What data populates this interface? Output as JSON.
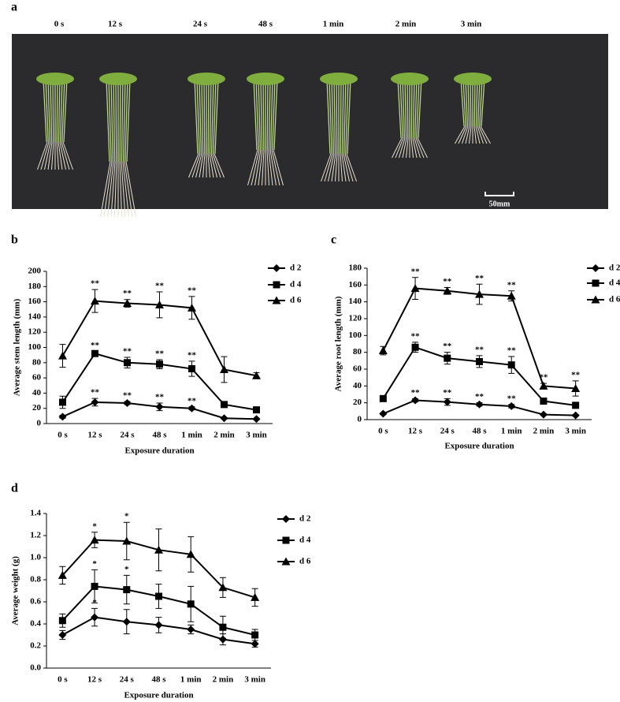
{
  "photo": {
    "label": "a",
    "durations": [
      "0 s",
      "12 s",
      "24 s",
      "48 s",
      "1 min",
      "2 min",
      "3 min"
    ],
    "scale_bar": "50mm"
  },
  "chart_data": [
    {
      "type": "line",
      "panel": "b",
      "y_label": "Average stem length (mm)",
      "x_label": "Exposure duration",
      "categories": [
        "0 s",
        "12 s",
        "24 s",
        "48 s",
        "1 min",
        "2 min",
        "3 min"
      ],
      "ylim": [
        0,
        200
      ],
      "yticks": [
        0,
        20,
        40,
        60,
        80,
        100,
        120,
        140,
        160,
        180,
        200
      ],
      "series": [
        {
          "name": "d 2",
          "color": "#000000",
          "marker": "diamond",
          "values": [
            9,
            28,
            27,
            22,
            20,
            7,
            6
          ],
          "errors": [
            2,
            5,
            2,
            5,
            2,
            1,
            1
          ],
          "significance": [
            null,
            "**",
            "**",
            "**",
            "**",
            null,
            null
          ]
        },
        {
          "name": "d 4",
          "color": "#000000",
          "marker": "square",
          "values": [
            28,
            92,
            80,
            78,
            72,
            25,
            18
          ],
          "errors": [
            8,
            3,
            7,
            6,
            10,
            2,
            2
          ],
          "significance": [
            null,
            "**",
            "**",
            "**",
            "**",
            null,
            null
          ]
        },
        {
          "name": "d 6",
          "color": "#000000",
          "marker": "triangle",
          "values": [
            89,
            161,
            158,
            156,
            152,
            71,
            63
          ],
          "errors": [
            15,
            15,
            5,
            17,
            15,
            17,
            4
          ],
          "significance": [
            null,
            "**",
            "**",
            "**",
            "**",
            null,
            null
          ]
        }
      ]
    },
    {
      "type": "line",
      "panel": "c",
      "y_label": "Average root length (mm)",
      "x_label": "Exposure duration",
      "categories": [
        "0 s",
        "12 s",
        "24 s",
        "48 s",
        "1 min",
        "2 min",
        "3 min"
      ],
      "ylim": [
        0,
        180
      ],
      "yticks": [
        0,
        20,
        40,
        60,
        80,
        100,
        120,
        140,
        160,
        180
      ],
      "series": [
        {
          "name": "d 2",
          "color": "#000000",
          "marker": "diamond",
          "values": [
            7,
            23,
            21,
            18,
            16,
            6,
            5
          ],
          "errors": [
            1,
            2,
            4,
            2,
            2,
            1,
            1
          ],
          "significance": [
            null,
            "**",
            "**",
            "**",
            "**",
            null,
            null
          ]
        },
        {
          "name": "d 4",
          "color": "#000000",
          "marker": "square",
          "values": [
            25,
            86,
            73,
            69,
            65,
            22,
            17
          ],
          "errors": [
            3,
            6,
            7,
            7,
            10,
            3,
            2
          ],
          "significance": [
            null,
            "**",
            "**",
            "**",
            "**",
            null,
            null
          ]
        },
        {
          "name": "d 6",
          "color": "#000000",
          "marker": "triangle",
          "values": [
            82,
            156,
            153,
            149,
            147,
            40,
            37
          ],
          "errors": [
            5,
            13,
            4,
            12,
            6,
            3,
            9
          ],
          "significance": [
            null,
            "**",
            "**",
            "**",
            "**",
            "**",
            "**"
          ]
        }
      ]
    },
    {
      "type": "line",
      "panel": "d",
      "y_label": "Average weight (g)",
      "x_label": "Exposure duration",
      "categories": [
        "0 s",
        "12 s",
        "24 s",
        "48 s",
        "1 min",
        "2 min",
        "3 min"
      ],
      "ylim": [
        0,
        1.4
      ],
      "yticks": [
        {
          "value": 0,
          "label": "0.0"
        },
        0.2,
        0.4,
        0.6,
        0.8,
        {
          "value": 1,
          "label": "1.0"
        },
        1.2,
        1.4
      ],
      "series": [
        {
          "name": "d 2",
          "color": "#000000",
          "marker": "diamond",
          "values": [
            0.3,
            0.46,
            0.42,
            0.39,
            0.35,
            0.26,
            0.22
          ],
          "errors": [
            0.04,
            0.08,
            0.11,
            0.07,
            0.04,
            0.05,
            0.03
          ],
          "significance": [
            null,
            "*",
            null,
            null,
            null,
            null,
            null
          ]
        },
        {
          "name": "d 4",
          "color": "#000000",
          "marker": "square",
          "values": [
            0.43,
            0.74,
            0.71,
            0.65,
            0.58,
            0.37,
            0.3
          ],
          "errors": [
            0.06,
            0.15,
            0.13,
            0.11,
            0.16,
            0.1,
            0.05
          ],
          "significance": [
            null,
            "*",
            "*",
            null,
            null,
            null,
            null
          ]
        },
        {
          "name": "d 6",
          "color": "#000000",
          "marker": "triangle",
          "values": [
            0.84,
            1.16,
            1.15,
            1.07,
            1.03,
            0.73,
            0.64
          ],
          "errors": [
            0.08,
            0.07,
            0.17,
            0.19,
            0.16,
            0.09,
            0.08
          ],
          "significance": [
            null,
            "*",
            "*",
            null,
            null,
            null,
            null
          ]
        }
      ]
    }
  ]
}
